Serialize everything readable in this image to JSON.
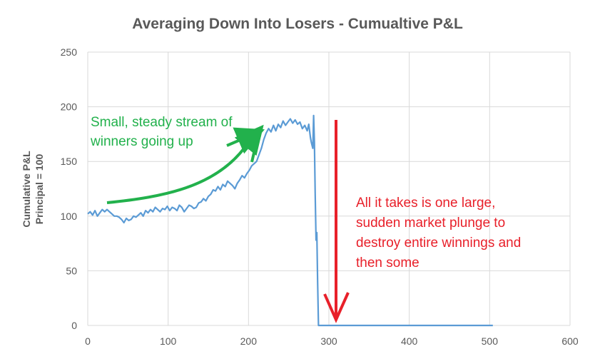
{
  "chart_data": {
    "type": "line",
    "title": "Averaging Down Into Losers - Cumualtive P&L",
    "xlabel": "",
    "ylabel_lines": [
      "Cumulative P&L",
      "Principal = 100"
    ],
    "xlim": [
      0,
      600
    ],
    "ylim": [
      0,
      250
    ],
    "x_ticks": [
      0,
      100,
      200,
      300,
      400,
      500,
      600
    ],
    "y_ticks": [
      0,
      50,
      100,
      150,
      200,
      250
    ],
    "grid": true,
    "series_color": "#5b9bd5",
    "series": [
      {
        "name": "Cumulative P&L",
        "x": [
          0,
          3,
          6,
          9,
          12,
          15,
          18,
          21,
          24,
          27,
          30,
          33,
          36,
          39,
          42,
          45,
          48,
          51,
          54,
          57,
          60,
          63,
          66,
          69,
          72,
          75,
          78,
          81,
          84,
          87,
          90,
          93,
          96,
          99,
          102,
          105,
          108,
          111,
          114,
          117,
          120,
          123,
          126,
          129,
          132,
          135,
          138,
          141,
          144,
          147,
          150,
          153,
          156,
          159,
          162,
          165,
          168,
          171,
          174,
          177,
          180,
          183,
          186,
          189,
          192,
          195,
          198,
          201,
          204,
          207,
          210,
          213,
          216,
          219,
          222,
          225,
          228,
          231,
          234,
          237,
          240,
          243,
          246,
          249,
          252,
          255,
          258,
          261,
          264,
          267,
          270,
          273,
          275,
          277,
          278,
          279,
          280,
          281,
          282,
          283,
          284,
          285,
          286,
          287,
          290,
          320,
          360,
          400,
          450,
          500,
          504
        ],
        "y": [
          102,
          104,
          101,
          105,
          100,
          103,
          106,
          104,
          106,
          104,
          102,
          100,
          100,
          99,
          97,
          94,
          98,
          96,
          97,
          100,
          99,
          101,
          103,
          100,
          105,
          103,
          106,
          104,
          108,
          106,
          104,
          107,
          106,
          109,
          105,
          108,
          107,
          105,
          110,
          108,
          104,
          107,
          110,
          109,
          107,
          108,
          112,
          113,
          116,
          114,
          118,
          120,
          124,
          123,
          127,
          124,
          129,
          127,
          132,
          130,
          128,
          125,
          130,
          133,
          137,
          135,
          139,
          142,
          146,
          148,
          150,
          156,
          162,
          170,
          176,
          180,
          177,
          183,
          178,
          184,
          181,
          187,
          183,
          186,
          189,
          185,
          188,
          184,
          186,
          180,
          183,
          178,
          184,
          172,
          168,
          165,
          162,
          192,
          168,
          120,
          78,
          85,
          40,
          0,
          0,
          0,
          0,
          0,
          0,
          0,
          0
        ]
      }
    ],
    "annotations": [
      {
        "name": "green-annotation",
        "color": "#22b14c",
        "lines": [
          "Small, steady stream of",
          "winners going up"
        ]
      },
      {
        "name": "red-annotation",
        "color": "#e8202a",
        "lines": [
          "All it takes is one large,",
          "sudden market plunge to",
          "destroy entire winnings and",
          "then some"
        ]
      }
    ]
  }
}
